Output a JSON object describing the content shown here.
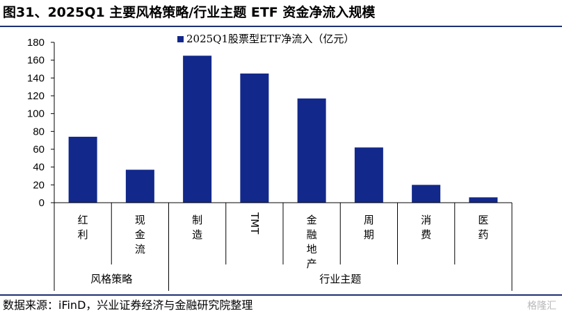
{
  "header": {
    "title": "图31、2025Q1 主要风格策略/行业主题 ETF 资金净流入规模"
  },
  "footer": {
    "source": "数据来源：iFinD，兴业证券经济与金融研究院整理",
    "watermark": "格隆汇"
  },
  "colors": {
    "bar": "#12288a",
    "rule": "#1a2f73"
  },
  "chart_data": {
    "type": "bar",
    "title": "",
    "xlabel": "",
    "ylabel": "",
    "ylim": [
      0,
      180
    ],
    "yticks": [
      0,
      20,
      40,
      60,
      80,
      100,
      120,
      140,
      160,
      180
    ],
    "grid": false,
    "legend_position": "top",
    "categories": [
      "红利",
      "现金流",
      "制造",
      "TMT",
      "金融地产",
      "周期",
      "消费",
      "医药"
    ],
    "groups": [
      {
        "label": "风格策略",
        "count": 2
      },
      {
        "label": "行业主题",
        "count": 6
      }
    ],
    "series": [
      {
        "name": "2025Q1股票型ETF净流入（亿元）",
        "values": [
          74,
          37,
          165,
          145,
          117,
          62,
          20,
          6
        ]
      }
    ]
  }
}
